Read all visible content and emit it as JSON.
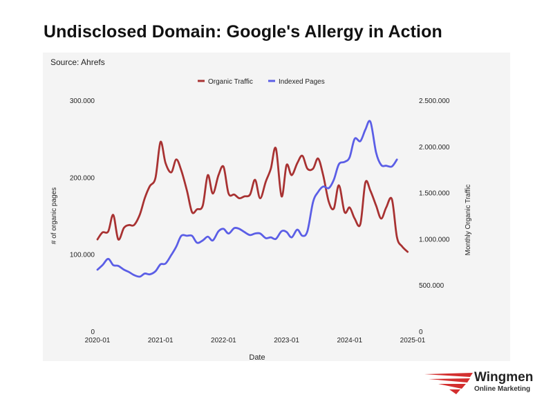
{
  "header": {
    "title": "Undisclosed Domain: Google's Allergy in Action"
  },
  "source": "Source: Ahrefs",
  "logo": {
    "name": "Wingmen",
    "tagline": "Online Marketing"
  },
  "colors": {
    "organic": "#a83232",
    "indexed": "#5b5ee6"
  },
  "chart_data": {
    "type": "line",
    "xlabel": "Date",
    "ylabel_left": "# of organic pages",
    "ylabel_right": "Monthly Organic Traffic",
    "x_ticks": [
      "2020-01",
      "2021-01",
      "2022-01",
      "2023-01",
      "2024-01",
      "2025-01"
    ],
    "y_left_ticks": [
      "0",
      "100.000",
      "200.000",
      "300.000"
    ],
    "y_right_ticks": [
      "0",
      "500.000",
      "1.000.000",
      "1.500.000",
      "2.000.000",
      "2.500.000"
    ],
    "y_left_range": [
      0,
      300000
    ],
    "y_right_range": [
      0,
      2500000
    ],
    "x_range": [
      2020.0,
      2025.0
    ],
    "legend": {
      "position": "top"
    },
    "series": [
      {
        "name": "Organic Traffic",
        "axis": "right",
        "color": "#a83232",
        "points": [
          [
            2020.0,
            995000
          ],
          [
            2020.08,
            1070000
          ],
          [
            2020.17,
            1080000
          ],
          [
            2020.25,
            1260000
          ],
          [
            2020.33,
            995000
          ],
          [
            2020.42,
            1120000
          ],
          [
            2020.5,
            1150000
          ],
          [
            2020.58,
            1150000
          ],
          [
            2020.67,
            1260000
          ],
          [
            2020.75,
            1440000
          ],
          [
            2020.83,
            1570000
          ],
          [
            2020.92,
            1660000
          ],
          [
            2021.0,
            2050000
          ],
          [
            2021.08,
            1820000
          ],
          [
            2021.17,
            1720000
          ],
          [
            2021.25,
            1860000
          ],
          [
            2021.33,
            1740000
          ],
          [
            2021.42,
            1520000
          ],
          [
            2021.5,
            1290000
          ],
          [
            2021.58,
            1320000
          ],
          [
            2021.67,
            1360000
          ],
          [
            2021.75,
            1690000
          ],
          [
            2021.83,
            1490000
          ],
          [
            2021.92,
            1690000
          ],
          [
            2022.0,
            1780000
          ],
          [
            2022.08,
            1490000
          ],
          [
            2022.17,
            1480000
          ],
          [
            2022.25,
            1440000
          ],
          [
            2022.33,
            1460000
          ],
          [
            2022.42,
            1480000
          ],
          [
            2022.5,
            1640000
          ],
          [
            2022.58,
            1440000
          ],
          [
            2022.67,
            1620000
          ],
          [
            2022.75,
            1760000
          ],
          [
            2022.83,
            1980000
          ],
          [
            2022.92,
            1460000
          ],
          [
            2023.0,
            1800000
          ],
          [
            2023.08,
            1690000
          ],
          [
            2023.17,
            1820000
          ],
          [
            2023.25,
            1900000
          ],
          [
            2023.33,
            1760000
          ],
          [
            2023.42,
            1760000
          ],
          [
            2023.5,
            1870000
          ],
          [
            2023.58,
            1690000
          ],
          [
            2023.67,
            1400000
          ],
          [
            2023.75,
            1330000
          ],
          [
            2023.83,
            1580000
          ],
          [
            2023.92,
            1290000
          ],
          [
            2024.0,
            1340000
          ],
          [
            2024.08,
            1220000
          ],
          [
            2024.17,
            1160000
          ],
          [
            2024.25,
            1610000
          ],
          [
            2024.33,
            1520000
          ],
          [
            2024.42,
            1360000
          ],
          [
            2024.5,
            1220000
          ],
          [
            2024.58,
            1340000
          ],
          [
            2024.67,
            1430000
          ],
          [
            2024.75,
            1020000
          ],
          [
            2024.83,
            920000
          ],
          [
            2024.92,
            860000
          ]
        ]
      },
      {
        "name": "Indexed Pages",
        "axis": "left",
        "color": "#5b5ee6",
        "points": [
          [
            2020.0,
            80000
          ],
          [
            2020.08,
            86000
          ],
          [
            2020.17,
            94000
          ],
          [
            2020.25,
            86000
          ],
          [
            2020.33,
            85000
          ],
          [
            2020.42,
            80000
          ],
          [
            2020.5,
            77000
          ],
          [
            2020.58,
            73000
          ],
          [
            2020.67,
            71000
          ],
          [
            2020.75,
            75000
          ],
          [
            2020.83,
            74000
          ],
          [
            2020.92,
            78000
          ],
          [
            2021.0,
            87000
          ],
          [
            2021.08,
            88000
          ],
          [
            2021.17,
            99000
          ],
          [
            2021.25,
            110000
          ],
          [
            2021.33,
            124000
          ],
          [
            2021.42,
            124000
          ],
          [
            2021.5,
            124000
          ],
          [
            2021.58,
            115000
          ],
          [
            2021.67,
            118000
          ],
          [
            2021.75,
            123000
          ],
          [
            2021.83,
            118000
          ],
          [
            2021.92,
            130000
          ],
          [
            2022.0,
            133000
          ],
          [
            2022.08,
            127000
          ],
          [
            2022.17,
            134000
          ],
          [
            2022.25,
            133000
          ],
          [
            2022.33,
            129000
          ],
          [
            2022.42,
            125000
          ],
          [
            2022.5,
            127000
          ],
          [
            2022.58,
            127000
          ],
          [
            2022.67,
            121000
          ],
          [
            2022.75,
            122000
          ],
          [
            2022.83,
            120000
          ],
          [
            2022.92,
            130000
          ],
          [
            2023.0,
            129000
          ],
          [
            2023.08,
            122000
          ],
          [
            2023.17,
            132000
          ],
          [
            2023.25,
            124000
          ],
          [
            2023.33,
            130000
          ],
          [
            2023.42,
            168000
          ],
          [
            2023.5,
            181000
          ],
          [
            2023.58,
            188000
          ],
          [
            2023.67,
            186000
          ],
          [
            2023.75,
            197000
          ],
          [
            2023.83,
            217000
          ],
          [
            2023.92,
            220000
          ],
          [
            2024.0,
            226000
          ],
          [
            2024.08,
            250000
          ],
          [
            2024.17,
            247000
          ],
          [
            2024.25,
            262000
          ],
          [
            2024.33,
            272000
          ],
          [
            2024.42,
            232000
          ],
          [
            2024.5,
            216000
          ],
          [
            2024.58,
            215000
          ],
          [
            2024.67,
            214000
          ],
          [
            2024.75,
            223000
          ]
        ]
      }
    ]
  }
}
